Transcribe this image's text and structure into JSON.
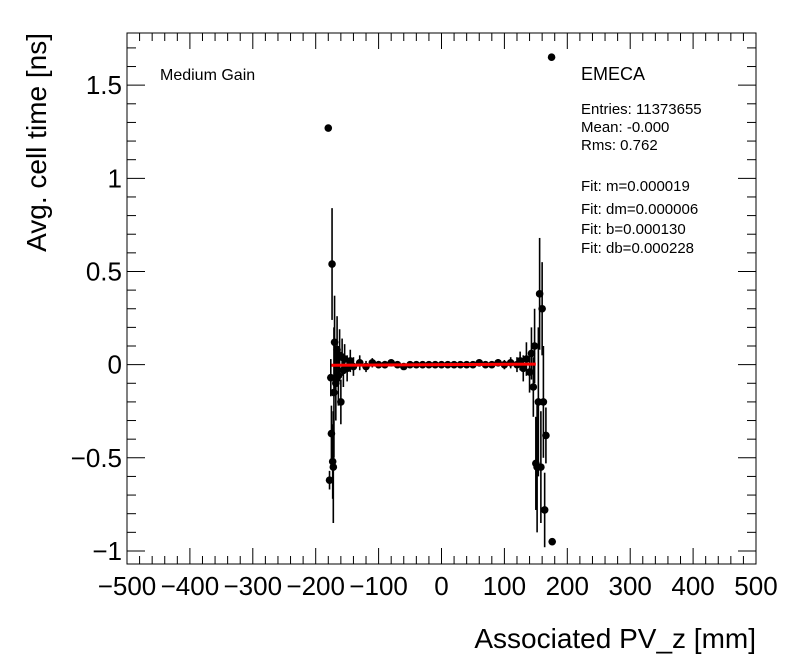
{
  "chart_data": {
    "type": "scatter",
    "xlabel": "Associated PV_z [mm]",
    "ylabel": "Avg. cell time [ns]",
    "xlim": [
      -500,
      500
    ],
    "ylim": [
      -1.07,
      1.78
    ],
    "x_ticks": [
      {
        "value": -500,
        "label": "−500"
      },
      {
        "value": -400,
        "label": "−400"
      },
      {
        "value": -300,
        "label": "−300"
      },
      {
        "value": -200,
        "label": "−200"
      },
      {
        "value": -100,
        "label": "−100"
      },
      {
        "value": 0,
        "label": "0"
      },
      {
        "value": 100,
        "label": "100"
      },
      {
        "value": 200,
        "label": "200"
      },
      {
        "value": 300,
        "label": "300"
      },
      {
        "value": 400,
        "label": "400"
      },
      {
        "value": 500,
        "label": "500"
      }
    ],
    "y_ticks": [
      {
        "value": -1,
        "label": "−1"
      },
      {
        "value": -0.5,
        "label": "−0.5"
      },
      {
        "value": 0,
        "label": "0"
      },
      {
        "value": 0.5,
        "label": "0.5"
      },
      {
        "value": 1,
        "label": "1"
      },
      {
        "value": 1.5,
        "label": "1.5"
      }
    ],
    "grid": false,
    "annotations": {
      "gain": "Medium Gain",
      "region": "EMECA",
      "stats": [
        "Entries: 11373655",
        "Mean: -0.000",
        "Rms: 0.762"
      ],
      "fit": [
        "Fit: m=0.000019",
        "Fit: dm=0.000006",
        "Fit: b=0.000130",
        "Fit: db=0.000228"
      ]
    },
    "fit_line": {
      "x": [
        -175,
        150
      ],
      "m": 1.9e-05,
      "b": 0.00013,
      "color": "#ff0000"
    },
    "series": [
      {
        "marker_color": "#000000",
        "points": [
          {
            "x": -180,
            "y": 1.27,
            "err": 0.0
          },
          {
            "x": -178,
            "y": -0.62,
            "err": 0.05
          },
          {
            "x": -176,
            "y": -0.07,
            "err": 0.1
          },
          {
            "x": -175,
            "y": -0.37,
            "err": 0.15
          },
          {
            "x": -174,
            "y": 0.54,
            "err": 0.3
          },
          {
            "x": -173,
            "y": -0.52,
            "err": 0.2
          },
          {
            "x": -172,
            "y": -0.55,
            "err": 0.3
          },
          {
            "x": -171,
            "y": -0.15,
            "err": 0.35
          },
          {
            "x": -170,
            "y": 0.12,
            "err": 0.25
          },
          {
            "x": -168,
            "y": -0.1,
            "err": 0.2
          },
          {
            "x": -166,
            "y": 0.08,
            "err": 0.18
          },
          {
            "x": -164,
            "y": -0.06,
            "err": 0.16
          },
          {
            "x": -162,
            "y": 0.05,
            "err": 0.14
          },
          {
            "x": -160,
            "y": -0.2,
            "err": 0.12
          },
          {
            "x": -158,
            "y": 0.04,
            "err": 0.1
          },
          {
            "x": -156,
            "y": -0.03,
            "err": 0.09
          },
          {
            "x": -154,
            "y": 0.03,
            "err": 0.08
          },
          {
            "x": -150,
            "y": -0.02,
            "err": 0.07
          },
          {
            "x": -145,
            "y": 0.02,
            "err": 0.06
          },
          {
            "x": -140,
            "y": -0.01,
            "err": 0.05
          },
          {
            "x": -130,
            "y": 0.01,
            "err": 0.04
          },
          {
            "x": -120,
            "y": -0.01,
            "err": 0.03
          },
          {
            "x": -110,
            "y": 0.01,
            "err": 0.025
          },
          {
            "x": -100,
            "y": 0.0,
            "err": 0.02
          },
          {
            "x": -90,
            "y": 0.0,
            "err": 0.02
          },
          {
            "x": -80,
            "y": 0.01,
            "err": 0.015
          },
          {
            "x": -70,
            "y": 0.0,
            "err": 0.015
          },
          {
            "x": -60,
            "y": -0.01,
            "err": 0.012
          },
          {
            "x": -50,
            "y": 0.0,
            "err": 0.01
          },
          {
            "x": -40,
            "y": 0.0,
            "err": 0.01
          },
          {
            "x": -30,
            "y": 0.0,
            "err": 0.01
          },
          {
            "x": -20,
            "y": 0.0,
            "err": 0.01
          },
          {
            "x": -10,
            "y": 0.0,
            "err": 0.01
          },
          {
            "x": 0,
            "y": 0.0,
            "err": 0.01
          },
          {
            "x": 10,
            "y": 0.0,
            "err": 0.01
          },
          {
            "x": 20,
            "y": 0.0,
            "err": 0.01
          },
          {
            "x": 30,
            "y": 0.0,
            "err": 0.01
          },
          {
            "x": 40,
            "y": 0.0,
            "err": 0.01
          },
          {
            "x": 50,
            "y": 0.0,
            "err": 0.012
          },
          {
            "x": 60,
            "y": 0.01,
            "err": 0.012
          },
          {
            "x": 70,
            "y": 0.0,
            "err": 0.015
          },
          {
            "x": 80,
            "y": 0.0,
            "err": 0.015
          },
          {
            "x": 90,
            "y": 0.01,
            "err": 0.02
          },
          {
            "x": 100,
            "y": 0.0,
            "err": 0.025
          },
          {
            "x": 110,
            "y": 0.01,
            "err": 0.03
          },
          {
            "x": 120,
            "y": 0.0,
            "err": 0.04
          },
          {
            "x": 125,
            "y": 0.02,
            "err": 0.05
          },
          {
            "x": 130,
            "y": -0.02,
            "err": 0.07
          },
          {
            "x": 135,
            "y": 0.03,
            "err": 0.09
          },
          {
            "x": 140,
            "y": -0.04,
            "err": 0.11
          },
          {
            "x": 143,
            "y": 0.06,
            "err": 0.14
          },
          {
            "x": 146,
            "y": -0.12,
            "err": 0.16
          },
          {
            "x": 148,
            "y": 0.1,
            "err": 0.2
          },
          {
            "x": 150,
            "y": -0.53,
            "err": 0.25
          },
          {
            "x": 152,
            "y": -0.55,
            "err": 0.35
          },
          {
            "x": 154,
            "y": -0.2,
            "err": 0.4
          },
          {
            "x": 156,
            "y": 0.38,
            "err": 0.3
          },
          {
            "x": 158,
            "y": -0.55,
            "err": 0.3
          },
          {
            "x": 160,
            "y": 0.3,
            "err": 0.25
          },
          {
            "x": 162,
            "y": -0.2,
            "err": 0.3
          },
          {
            "x": 164,
            "y": -0.78,
            "err": 0.2
          },
          {
            "x": 166,
            "y": -0.38,
            "err": 0.15
          },
          {
            "x": 175,
            "y": 1.65,
            "err": 0.0
          },
          {
            "x": 176,
            "y": -0.95,
            "err": 0.0
          }
        ]
      }
    ]
  }
}
